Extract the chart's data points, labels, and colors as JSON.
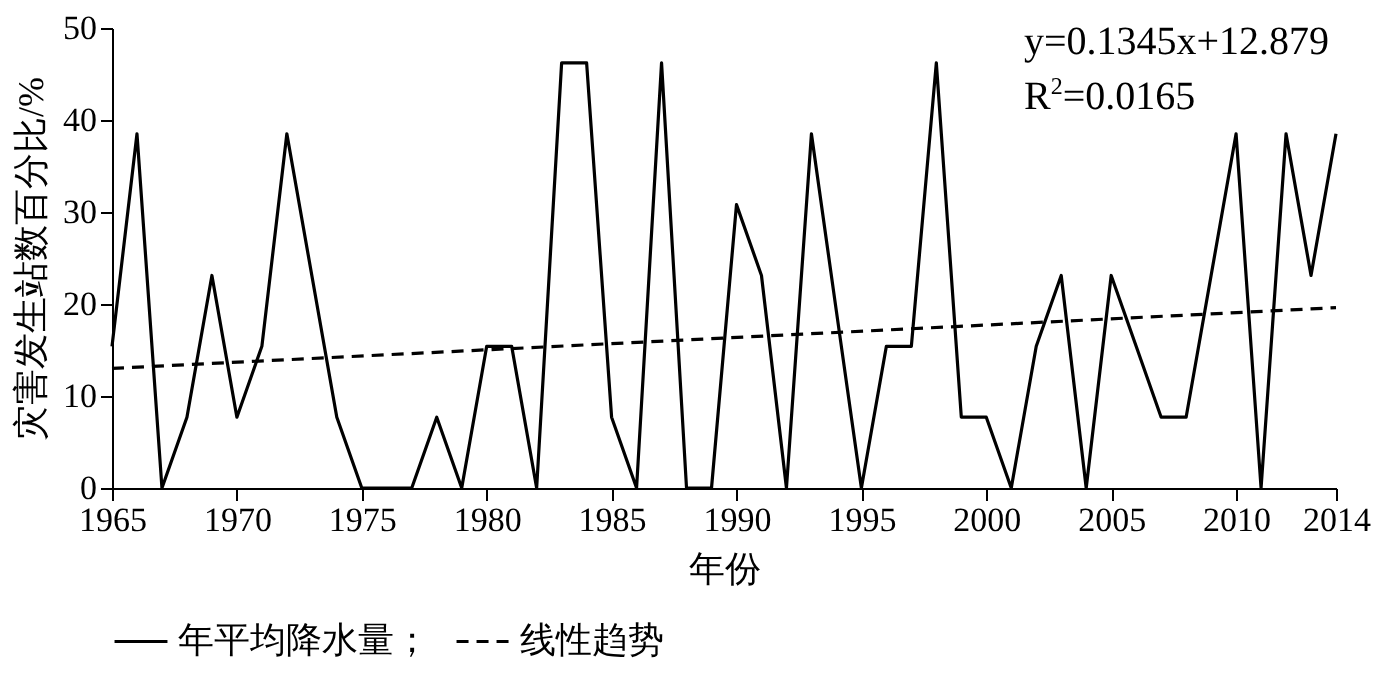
{
  "chart_data": {
    "type": "line",
    "xlabel": "年份",
    "ylabel": "灾害发生站数百分比/%",
    "x": [
      1965,
      1966,
      1967,
      1968,
      1969,
      1970,
      1971,
      1972,
      1973,
      1974,
      1975,
      1976,
      1977,
      1978,
      1979,
      1980,
      1981,
      1982,
      1983,
      1984,
      1985,
      1986,
      1987,
      1988,
      1989,
      1990,
      1991,
      1992,
      1993,
      1994,
      1995,
      1996,
      1997,
      1998,
      1999,
      2000,
      2001,
      2002,
      2003,
      2004,
      2005,
      2006,
      2007,
      2008,
      2009,
      2010,
      2011,
      2012,
      2013,
      2014
    ],
    "series": [
      {
        "name": "年平均降水量；",
        "color": "#000000",
        "line_style": "solid",
        "values": [
          15.4,
          38.5,
          0,
          7.7,
          23.1,
          7.7,
          15.4,
          38.5,
          23.1,
          7.7,
          0,
          0,
          0,
          7.7,
          0,
          15.4,
          15.4,
          0,
          46.2,
          46.2,
          7.7,
          0,
          46.2,
          0,
          0,
          30.8,
          23.1,
          0,
          38.5,
          19.2,
          0,
          15.4,
          15.4,
          46.2,
          7.7,
          7.7,
          0,
          15.4,
          23.1,
          0,
          23.1,
          15.4,
          7.7,
          7.7,
          23.1,
          38.5,
          0,
          38.5,
          23.1,
          38.5
        ]
      },
      {
        "name": "线性趋势",
        "color": "#000000",
        "line_style": "dashed",
        "x": [
          1965,
          2014
        ],
        "values": [
          13.0,
          19.6
        ]
      }
    ],
    "xlim": [
      1965,
      2014
    ],
    "xticks": [
      1965,
      1970,
      1975,
      1980,
      1985,
      1990,
      1995,
      2000,
      2005,
      2010,
      2014
    ],
    "ylim": [
      0,
      50
    ],
    "yticks": [
      0,
      10,
      20,
      30,
      40,
      50
    ],
    "grid": false,
    "legend": "bottom",
    "marker": "none",
    "annotations": [
      "y=0.1345x+12.879",
      "R$^{2}$=0.0165"
    ]
  }
}
